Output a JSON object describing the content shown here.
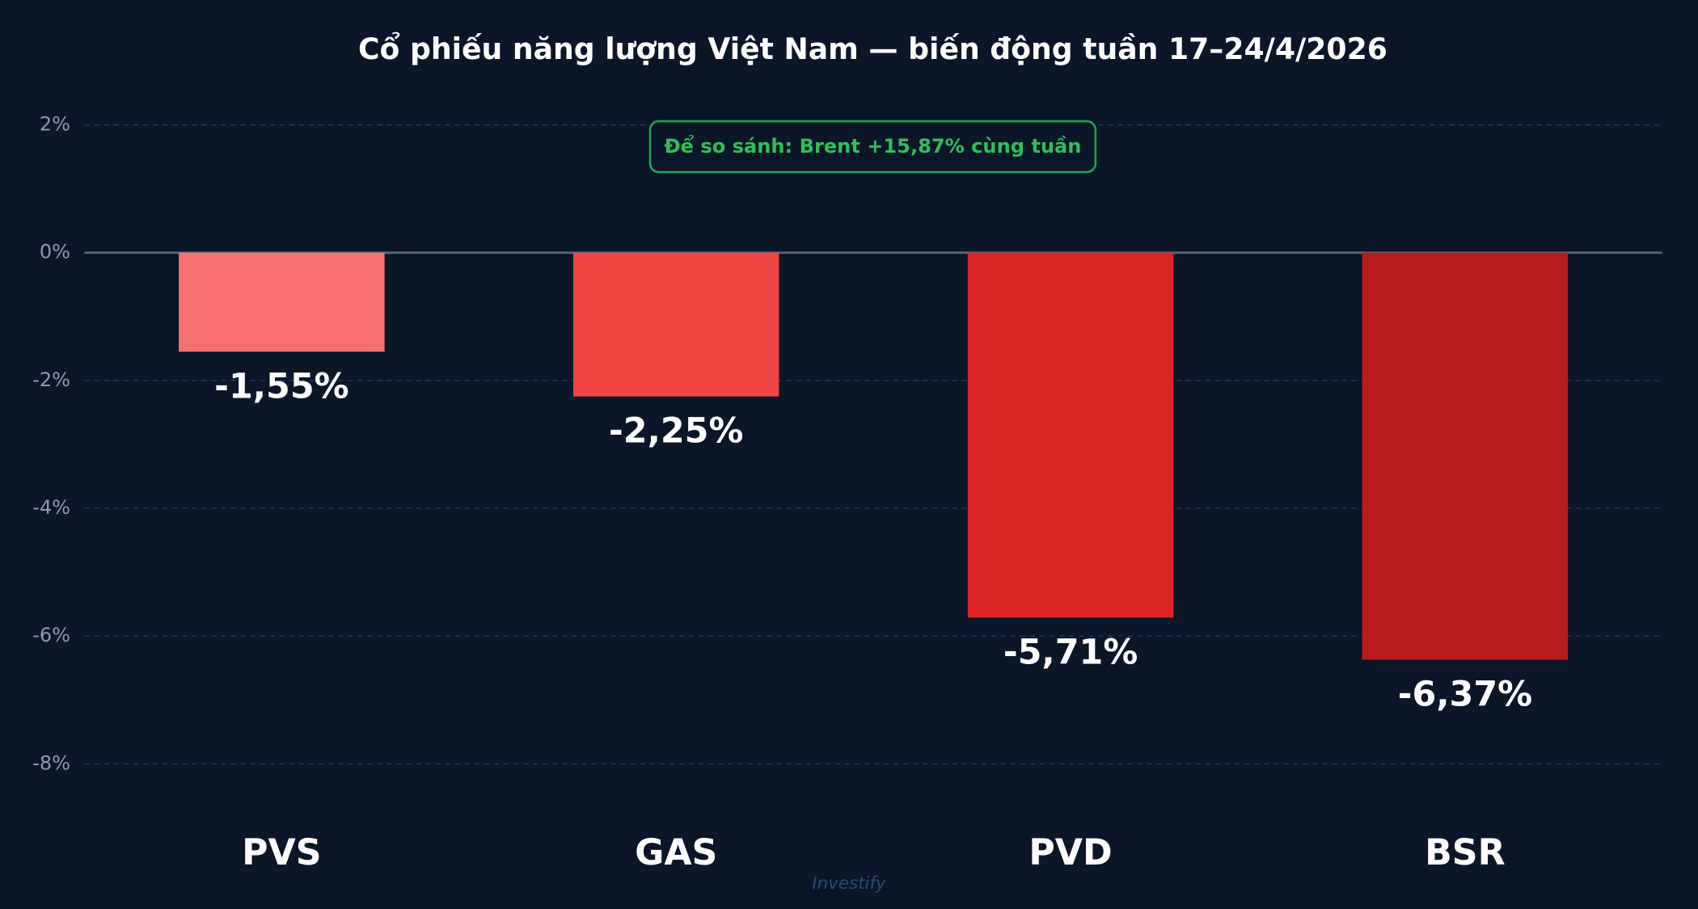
{
  "chart_data": {
    "type": "bar",
    "title": "Cổ phiếu năng lượng Việt Nam — biến động tuần 17–24/4/2026",
    "categories": [
      "PVS",
      "GAS",
      "PVD",
      "BSR"
    ],
    "values": [
      -1.55,
      -2.25,
      -5.71,
      -6.37
    ],
    "value_labels": [
      "-1,55%",
      "-2,25%",
      "-5,71%",
      "-6,37%"
    ],
    "colors": [
      "#f87171",
      "#ef4444",
      "#dc2626",
      "#b91c1c"
    ],
    "ylim": [
      -8.9,
      2.6
    ],
    "yticks": [
      {
        "value": 2,
        "label": "2%"
      },
      {
        "value": 0,
        "label": "0%"
      },
      {
        "value": -2,
        "label": "-2%"
      },
      {
        "value": -4,
        "label": "-4%"
      },
      {
        "value": -6,
        "label": "-6%"
      },
      {
        "value": -8,
        "label": "-8%"
      }
    ],
    "grid": true,
    "annotation": "Để so sánh: Brent +15,87% cùng tuần",
    "watermark": "Investify"
  }
}
